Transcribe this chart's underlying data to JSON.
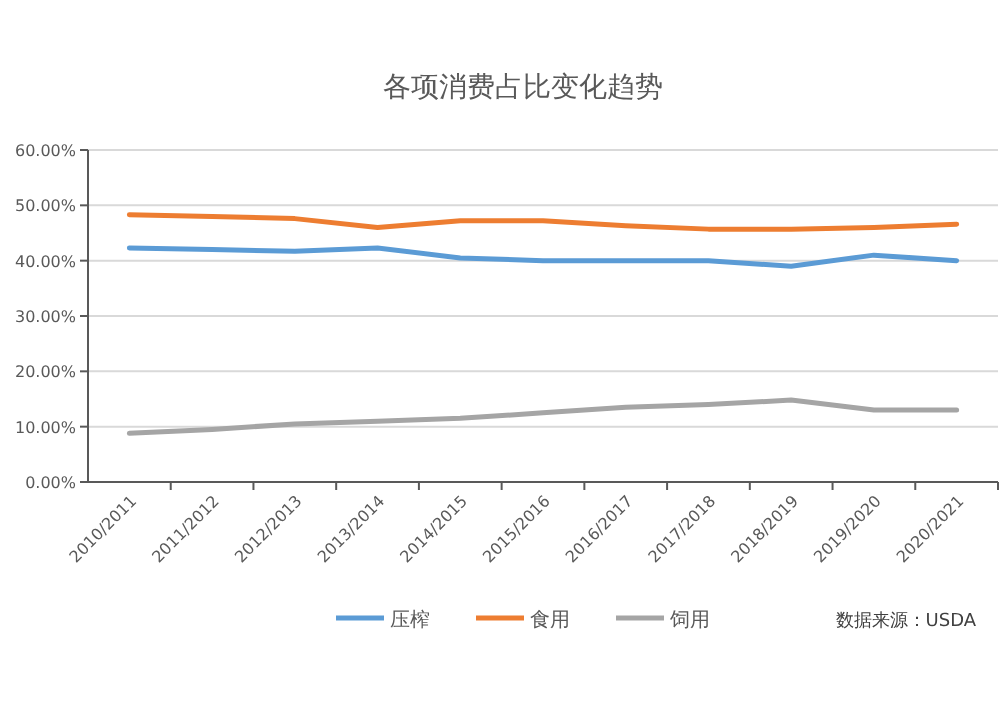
{
  "chart_data": {
    "type": "line",
    "title": "各项消费占比变化趋势",
    "categories": [
      "2010/2011",
      "2011/2012",
      "2012/2013",
      "2013/2014",
      "2014/2015",
      "2015/2016",
      "2016/2017",
      "2017/2018",
      "2018/2019",
      "2019/2020",
      "2020/2021"
    ],
    "series": [
      {
        "name": "压榨",
        "color": "#5b9bd5",
        "values": [
          42.3,
          42,
          41.7,
          42.3,
          40.5,
          40,
          40,
          40,
          39,
          41,
          40
        ]
      },
      {
        "name": "食用",
        "color": "#ed7d31",
        "values": [
          48.3,
          48,
          47.6,
          46,
          47.2,
          47.2,
          46.3,
          45.7,
          45.7,
          46,
          46.6
        ]
      },
      {
        "name": "饲用",
        "color": "#a5a5a5",
        "values": [
          8.8,
          9.5,
          10.5,
          11,
          11.5,
          12.5,
          13.5,
          14,
          14.8,
          13,
          13
        ]
      }
    ],
    "ylim": [
      0,
      60
    ],
    "yticks": [
      {
        "value": 0,
        "label": "0.00%"
      },
      {
        "value": 10,
        "label": "10.00%"
      },
      {
        "value": 20,
        "label": "20.00%"
      },
      {
        "value": 30,
        "label": "30.00%"
      },
      {
        "value": 40,
        "label": "40.00%"
      },
      {
        "value": 50,
        "label": "50.00%"
      },
      {
        "value": 60,
        "label": "60.00%"
      }
    ],
    "grid": "y",
    "legend": "bottom",
    "annotations": [
      "数据来源：USDA"
    ]
  }
}
